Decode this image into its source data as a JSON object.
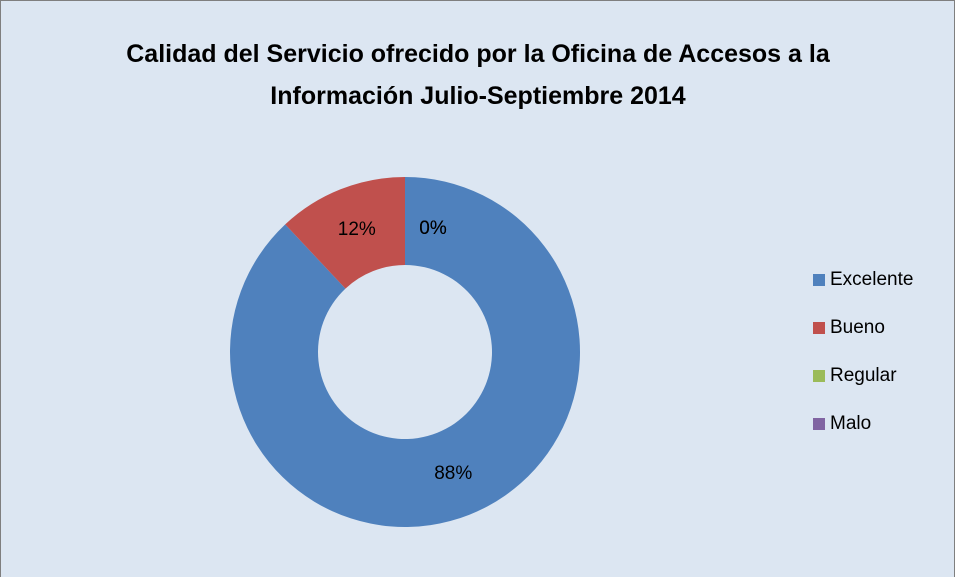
{
  "chart_data": {
    "type": "doughnut",
    "title": "Calidad del Servicio ofrecido por la Oficina de Accesos a la Información Julio-Septiembre 2014",
    "categories": [
      "Excelente",
      "Bueno",
      "Regular",
      "Malo"
    ],
    "values": [
      88,
      12,
      0,
      0
    ],
    "value_labels": [
      "88%",
      "12%",
      "0%",
      "0%"
    ],
    "colors": [
      "#4f81bd",
      "#c0504d",
      "#9bbb59",
      "#8064a2"
    ],
    "legend": "right"
  }
}
